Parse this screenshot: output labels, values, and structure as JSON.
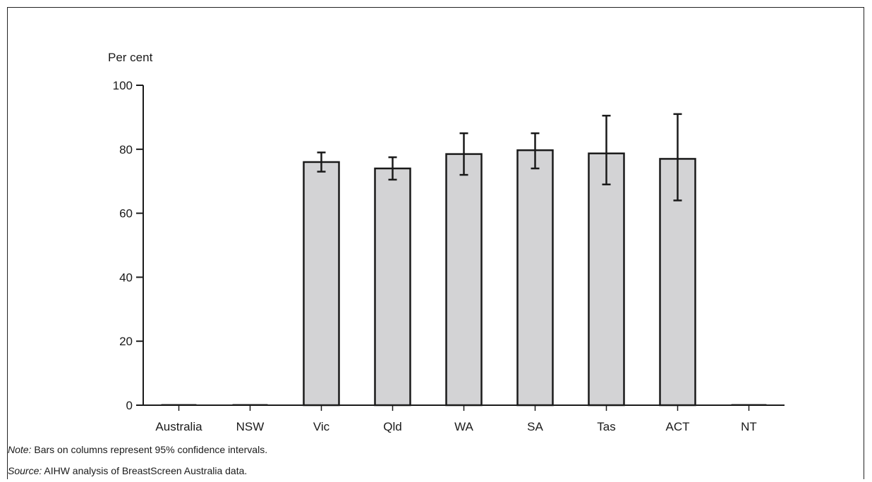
{
  "chart_data": {
    "type": "bar",
    "ylabel": "Per cent",
    "ylim": [
      0,
      100
    ],
    "yticks": [
      0,
      20,
      40,
      60,
      80,
      100
    ],
    "categories": [
      "Australia",
      "NSW",
      "Vic",
      "Qld",
      "WA",
      "SA",
      "Tas",
      "ACT",
      "NT"
    ],
    "values": [
      0,
      0,
      76,
      74,
      78.5,
      79.7,
      78.7,
      77,
      0
    ],
    "ci_lower": [
      null,
      null,
      73,
      70.5,
      72,
      74,
      69,
      64,
      null
    ],
    "ci_upper": [
      null,
      null,
      79,
      77.5,
      85,
      85,
      90.5,
      91,
      null
    ],
    "grid": false,
    "bar_color": "#d3d3d5",
    "edge_color": "#1a1a1a"
  },
  "footnotes": {
    "note_label": "Note:",
    "note_text": " Bars on columns represent 95% confidence intervals.",
    "source_label": "Source:",
    "source_text": " AIHW analysis of BreastScreen Australia data."
  }
}
